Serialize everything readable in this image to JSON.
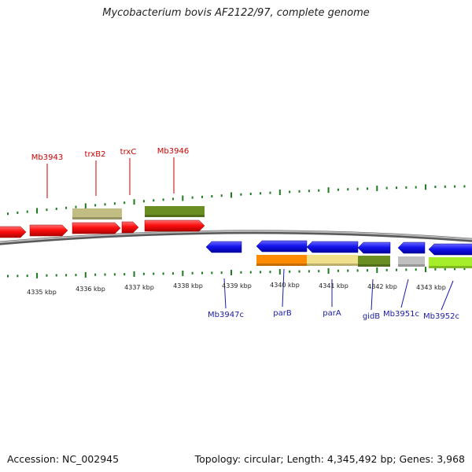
{
  "title": "Mycobacterium bovis AF2122/97, complete genome",
  "footer": {
    "accession": "Accession: NC_002945",
    "summary": "Topology: circular; Length: 4,345,492 bp; Genes: 3,968"
  },
  "scale_labels": [
    "4335 kbp",
    "4336 kbp",
    "4337 kbp",
    "4338 kbp",
    "4339 kbp",
    "4340 kbp",
    "4341 kbp",
    "4342 kbp",
    "4343 kbp"
  ],
  "forward_labels": [
    "Mb3943",
    "trxB2",
    "trxC",
    "Mb3946"
  ],
  "reverse_labels": [
    "Mb3947c",
    "parB",
    "parA",
    "gidB",
    "Mb3951c",
    "Mb3952c"
  ],
  "colors": {
    "forward_gene": "#ff1a1a",
    "reverse_gene": "#1f1fe6",
    "forward_label": "#cc0000",
    "reverse_label": "#1a1aaa",
    "tick": "#1e7a1e",
    "backbone": "#808080",
    "cog_khaki": "#c2bd82",
    "cog_olive": "#6b8e23",
    "cog_orange": "#ff8c00",
    "cog_wheat": "#f0e08c",
    "cog_silver": "#c0c0c0",
    "cog_lime": "#a6ee2a"
  }
}
